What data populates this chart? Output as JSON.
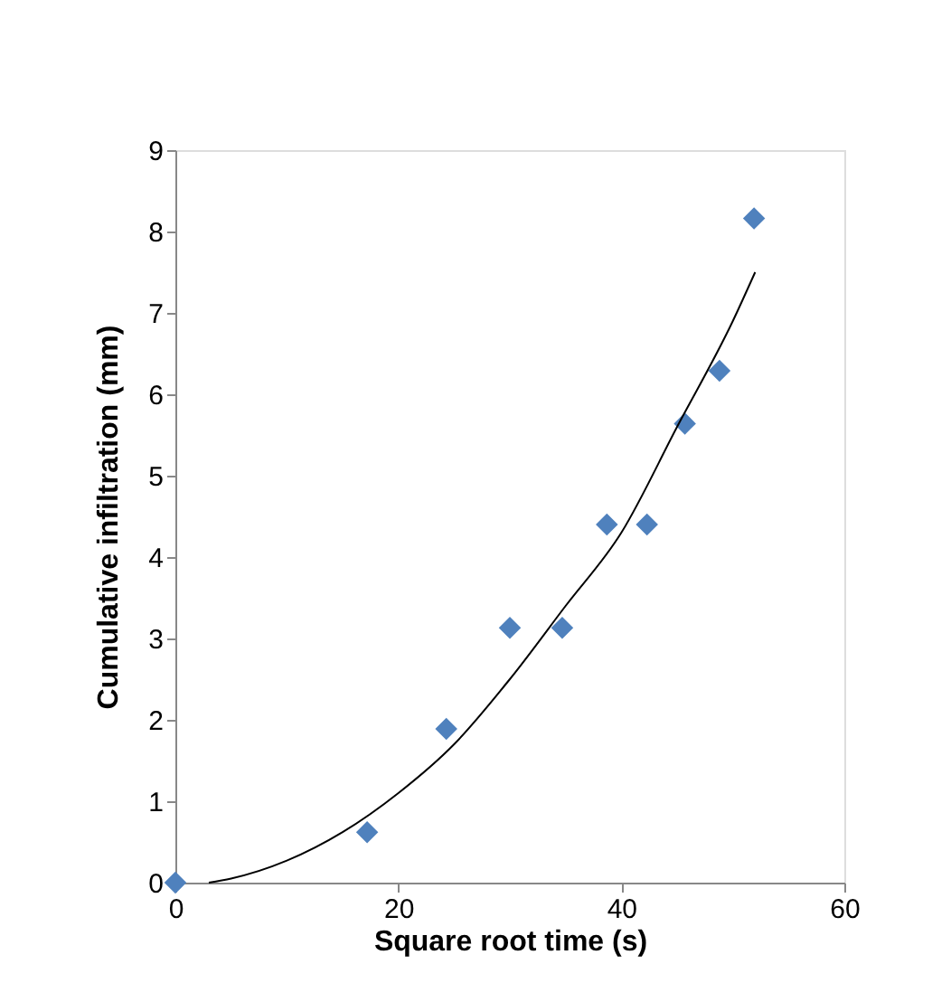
{
  "chart_data": {
    "type": "scatter",
    "xlabel": "Square root time (s)",
    "ylabel": "Cumulative infiltration (mm)",
    "xlim": [
      0,
      60
    ],
    "xticks": [
      0,
      20,
      40,
      60
    ],
    "ylim": [
      0,
      9
    ],
    "yticks": [
      0,
      1,
      2,
      3,
      4,
      5,
      6,
      7,
      8,
      9
    ],
    "grid": false,
    "series": [
      {
        "type": "scatter",
        "marker": "diamond",
        "color": "#4f81bd",
        "x": [
          0,
          17.2,
          24.3,
          30.0,
          34.7,
          38.7,
          42.3,
          45.7,
          48.8,
          51.9
        ],
        "values": [
          0,
          0.62,
          1.89,
          3.13,
          3.13,
          4.4,
          4.4,
          5.64,
          6.29,
          8.16
        ]
      },
      {
        "type": "line",
        "marker": "none",
        "line_style": "solid",
        "color": "#000000",
        "x": [
          3,
          5,
          10,
          15,
          20,
          25,
          30,
          35,
          40,
          45,
          50,
          52
        ],
        "values": [
          0,
          0.05,
          0.27,
          0.62,
          1.1,
          1.7,
          2.5,
          3.4,
          4.3,
          5.6,
          6.9,
          7.5
        ]
      }
    ]
  }
}
